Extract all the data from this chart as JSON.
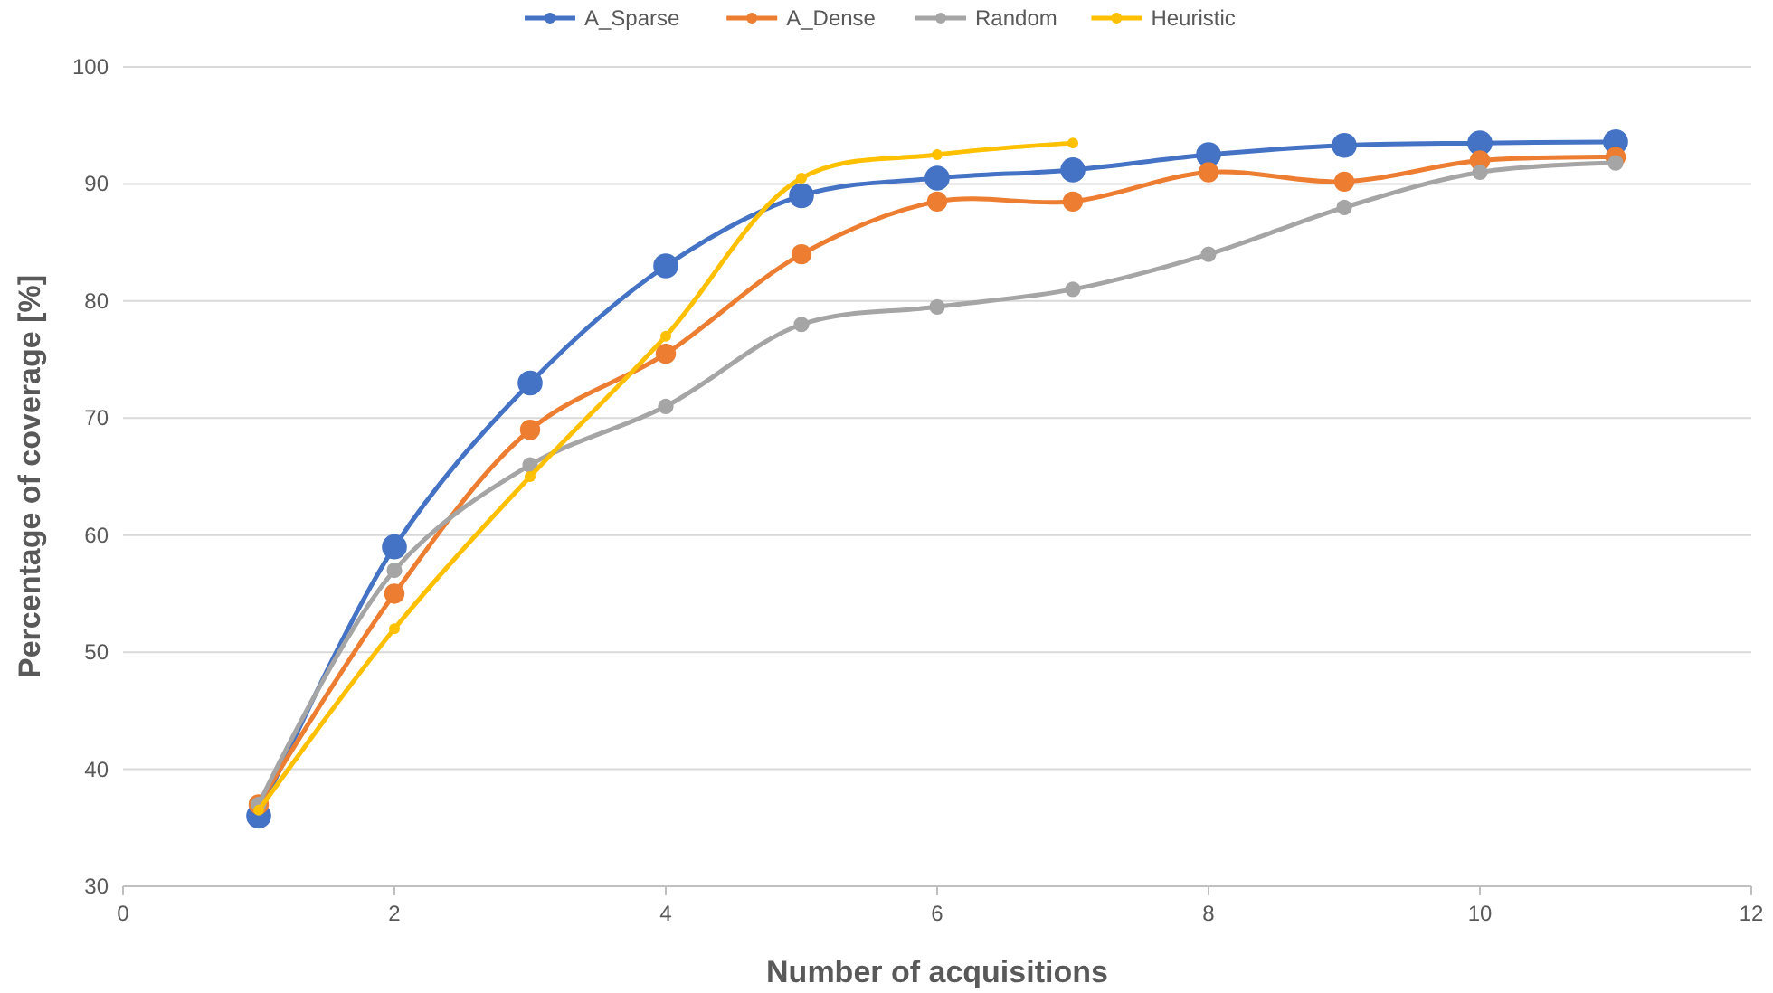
{
  "chart_data": {
    "type": "line",
    "xlabel": "Number of acquisitions",
    "ylabel": "Percentage of coverage [%]",
    "xlim": [
      0,
      12
    ],
    "xticks": [
      0,
      2,
      4,
      6,
      8,
      10,
      12
    ],
    "ylim": [
      30,
      100
    ],
    "yticks": [
      30,
      40,
      50,
      60,
      70,
      80,
      90,
      100
    ],
    "grid": "y",
    "legend": "top",
    "marker": "circle",
    "line_style": "solid",
    "series": [
      {
        "name": "A_Sparse",
        "color": "#4472c4",
        "x": [
          1,
          2,
          3,
          4,
          5,
          6,
          7,
          8,
          9,
          10,
          11
        ],
        "values": [
          36,
          59,
          73,
          83,
          89,
          90.5,
          91.2,
          92.5,
          93.3,
          93.5,
          93.6
        ]
      },
      {
        "name": "A_Dense",
        "color": "#ed7d31",
        "x": [
          1,
          2,
          3,
          4,
          5,
          6,
          7,
          8,
          9,
          10,
          11
        ],
        "values": [
          37,
          55,
          69,
          75.5,
          84,
          88.5,
          88.5,
          91,
          90.2,
          92,
          92.3
        ]
      },
      {
        "name": "Random",
        "color": "#a5a5a5",
        "x": [
          1,
          2,
          3,
          4,
          5,
          6,
          7,
          8,
          9,
          10,
          11
        ],
        "values": [
          37,
          57,
          66,
          71,
          78,
          79.5,
          81,
          84,
          88,
          91,
          91.8
        ]
      },
      {
        "name": "Heuristic",
        "color": "#ffc000",
        "x": [
          1,
          2,
          3,
          4,
          5,
          6,
          7
        ],
        "values": [
          36.5,
          52,
          65,
          77,
          90.5,
          92.5,
          93.5
        ]
      }
    ]
  }
}
